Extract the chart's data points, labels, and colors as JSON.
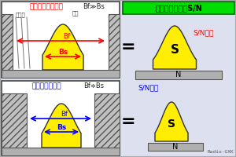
{
  "bg_color": "#dde0ee",
  "title_text": "フィルタ帯域とS/N",
  "title_bg": "#00dd00",
  "top_left_title": "必要以上に広帯域",
  "bottom_left_title": "必要十分な帯域",
  "eq1_label": "Bf≫Bs",
  "eq2_label": "Bf≑Bs",
  "noise_label": "ノイズ",
  "signal_label": "信号",
  "bf_label": "Bf",
  "bs_label": "Bs",
  "sn_low": "S/N低い",
  "sn_high": "S/N高い",
  "s_label": "S",
  "n_label": "N",
  "radio_credit": "Radio-GXK",
  "yellow_fill": "#ffee00",
  "red": "#ff0000",
  "blue": "#0000ff",
  "green_title": "#00dd00",
  "hatch_fc": "#c0c0c0",
  "bottom_bar_fc": "#b0b0b0"
}
